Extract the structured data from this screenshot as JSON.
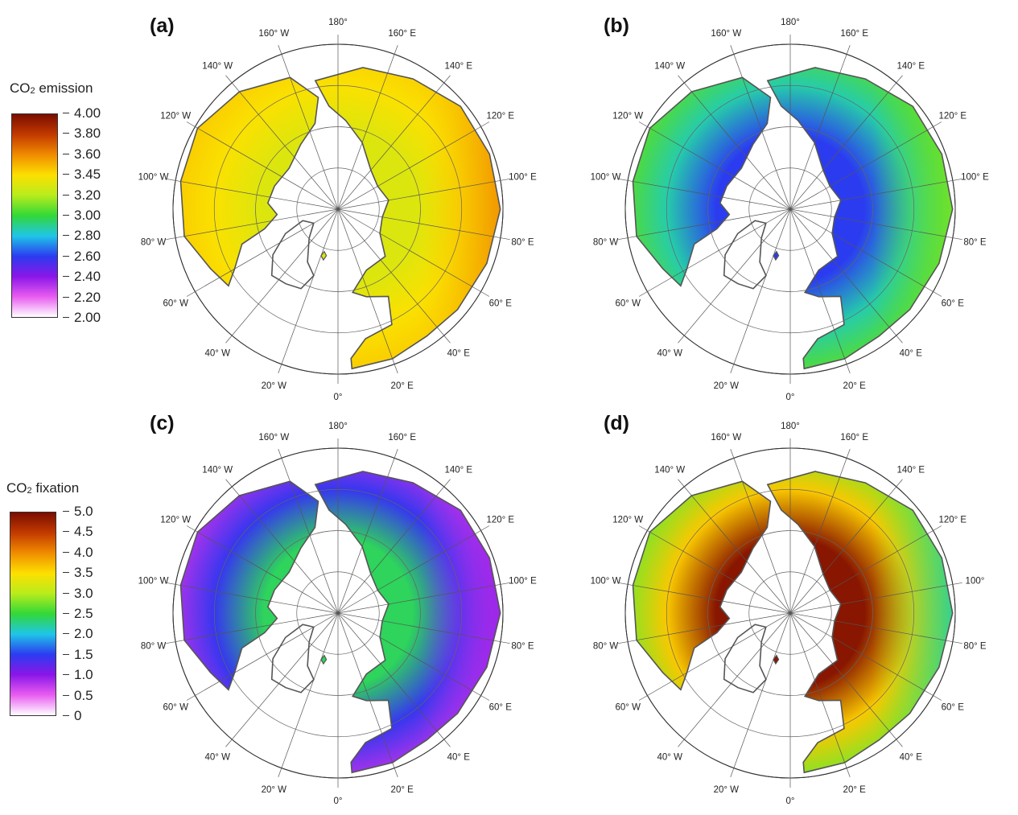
{
  "legends": [
    {
      "id": "emission",
      "title_prefix": "CO",
      "title_sub": "2",
      "title_suffix": " emission",
      "ticks": [
        "4.00",
        "3.80",
        "3.60",
        "3.45",
        "3.20",
        "3.00",
        "2.80",
        "2.60",
        "2.40",
        "2.20",
        "2.00"
      ],
      "colors": [
        "#7a0d00",
        "#c23a00",
        "#f08c00",
        "#fde000",
        "#b8ec1c",
        "#32d838",
        "#1fc6e8",
        "#2b3cf0",
        "#8a16e8",
        "#e85cf0",
        "#ffffff"
      ]
    },
    {
      "id": "fixation",
      "title_prefix": "CO",
      "title_sub": "2",
      "title_suffix": " fixation",
      "ticks": [
        "5.0",
        "4.5",
        "4.0",
        "3.5",
        "3.0",
        "2.5",
        "2.0",
        "1.5",
        "1.0",
        "0.5",
        "0"
      ],
      "colors": [
        "#7a0d00",
        "#c23a00",
        "#f08c00",
        "#fde000",
        "#b8ec1c",
        "#32d838",
        "#1fc6e8",
        "#2b3cf0",
        "#8a16e8",
        "#e85cf0",
        "#ffffff"
      ]
    }
  ],
  "panels": [
    {
      "id": "a",
      "label": "(a)",
      "legend": "emission",
      "lon_labels": [
        "180°",
        "160° E",
        "140° E",
        "120° E",
        "100° E",
        "80° E",
        "60° E",
        "40° E",
        "20° E",
        "0°",
        "20° W",
        "40° W",
        "60° W",
        "80° W",
        "100° W",
        "120° W",
        "140° W",
        "160° W"
      ],
      "value_inner": 3.3,
      "value_outer": 3.45,
      "value_edge_far_east": 3.6
    },
    {
      "id": "b",
      "label": "(b)",
      "legend": "emission",
      "lon_labels": [
        "180°",
        "160° E",
        "140° E",
        "120° E",
        "100° E",
        "80° E",
        "60° E",
        "40° E",
        "20° E",
        "0°",
        "20° W",
        "40° W",
        "60° W",
        "80° W",
        "100° W",
        "120° W",
        "140° W",
        "160° W"
      ],
      "value_inner": 2.6,
      "value_outer": 3.05,
      "value_edge_far_east": 3.1
    },
    {
      "id": "c",
      "label": "(c)",
      "legend": "fixation",
      "lon_labels": [
        "180°",
        "160° E",
        "140° E",
        "120° E",
        "100° E",
        "80° E",
        "60° E",
        "40° E",
        "20° E",
        "0°",
        "20° W",
        "40° W",
        "60° W",
        "80° W",
        "100° W",
        "120° W",
        "140° W",
        "160° W"
      ],
      "value_inner": 2.4,
      "value_outer": 0.8,
      "value_edge_far_east": 0.9
    },
    {
      "id": "d",
      "label": "(d)",
      "legend": "fixation",
      "lon_labels": [
        "180°",
        "160° E",
        "140° E",
        "120° E",
        "100°",
        "80° E",
        "60° E",
        "40° E",
        "20° E",
        "0°",
        "20° W",
        "40° W",
        "60° W",
        "80° W",
        "100° W",
        "120° W",
        "140° W",
        "160° W"
      ],
      "value_inner": 4.9,
      "value_outer": 2.8,
      "value_edge_far_east": 2.2
    }
  ]
}
